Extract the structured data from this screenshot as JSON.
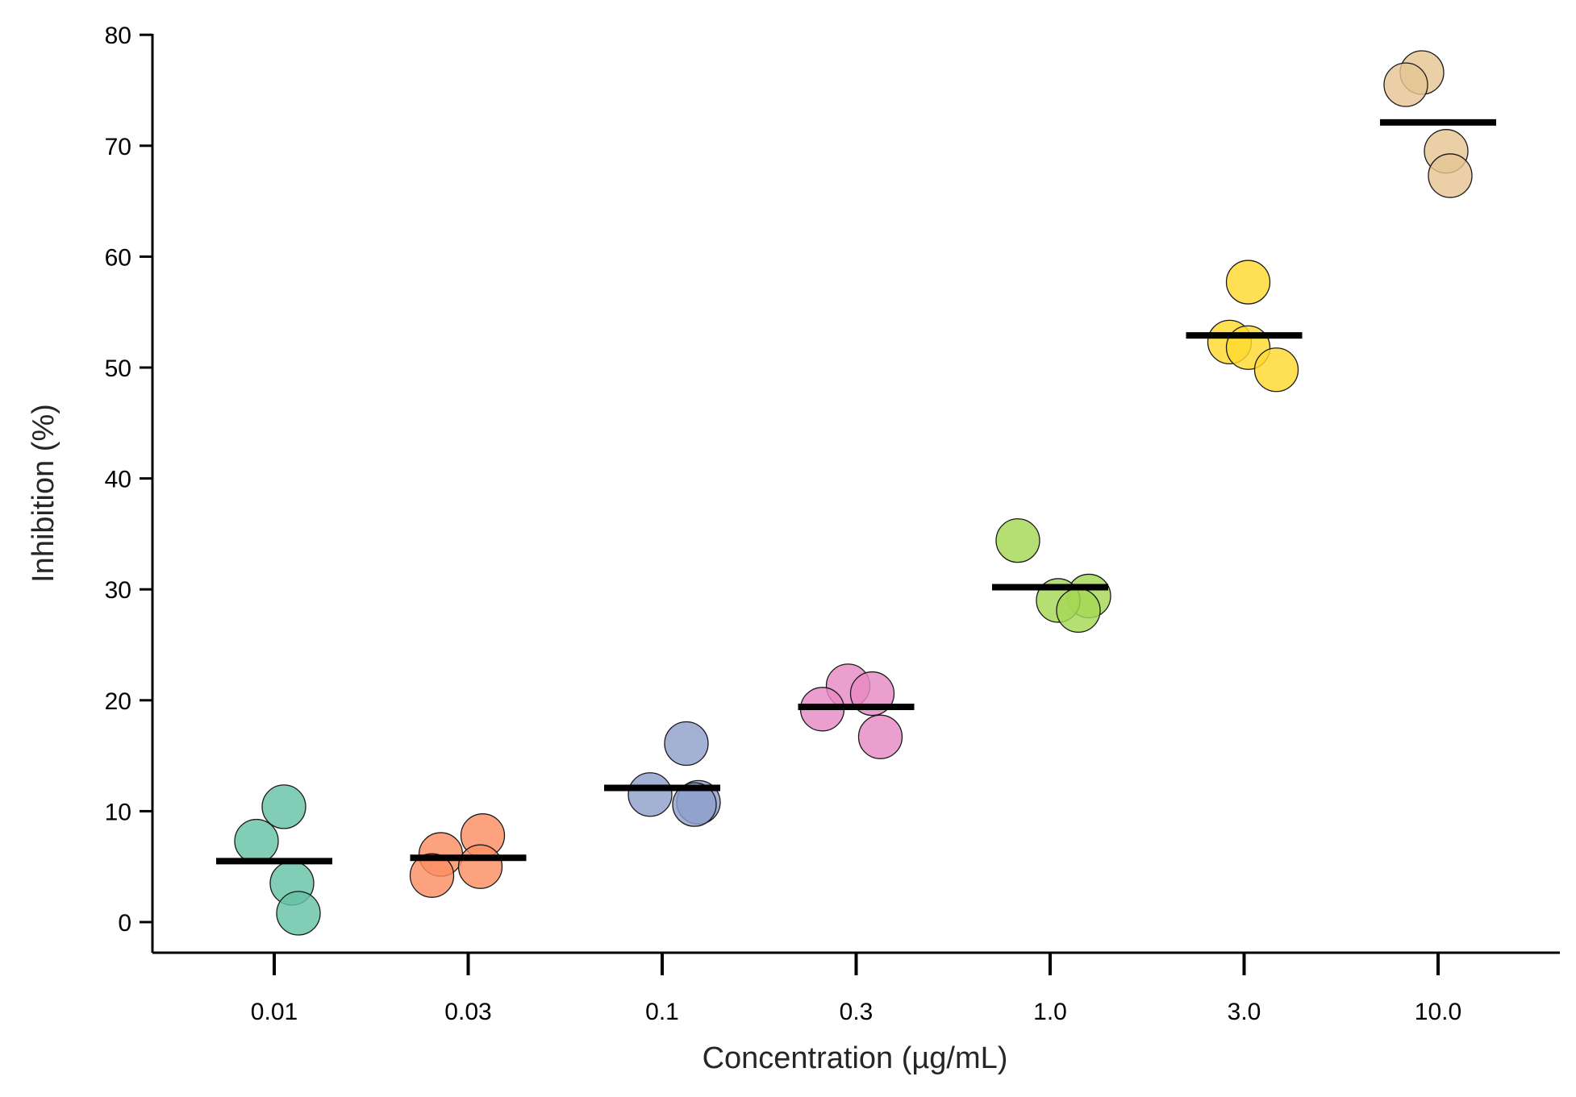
{
  "chart_data": {
    "type": "scatter",
    "title": "",
    "xlabel": "Concentration (µg/mL)",
    "ylabel": "Inhibition (%)",
    "ylim": [
      -3,
      80.5
    ],
    "yticks": [
      0,
      10,
      20,
      30,
      40,
      50,
      60,
      70,
      80
    ],
    "ytick_labels": [
      "0",
      "10",
      "20",
      "30",
      "40",
      "50",
      "60",
      "70",
      "80"
    ],
    "categories": [
      "0.01",
      "0.03",
      "0.1",
      "0.3",
      "1.0",
      "3.0",
      "10.0"
    ],
    "grid": false,
    "legend": "none",
    "series": [
      {
        "category": "0.01",
        "color": "#66c2a5",
        "values": [
          10.4,
          7.3,
          3.5,
          0.8
        ],
        "mean": 5.5
      },
      {
        "category": "0.03",
        "color": "#fc8d62",
        "values": [
          7.8,
          6.1,
          5.0,
          4.2
        ],
        "mean": 5.8
      },
      {
        "category": "0.1",
        "color": "#8da0cb",
        "values": [
          16.1,
          11.5,
          10.8,
          10.6
        ],
        "mean": 12.1
      },
      {
        "category": "0.3",
        "color": "#e78ac3",
        "values": [
          21.3,
          20.6,
          19.2,
          16.7
        ],
        "mean": 19.4
      },
      {
        "category": "1.0",
        "color": "#a6d854",
        "values": [
          34.4,
          29.4,
          29.0,
          28.1
        ],
        "mean": 30.2
      },
      {
        "category": "3.0",
        "color": "#ffd92f",
        "values": [
          57.7,
          52.3,
          51.8,
          49.8
        ],
        "mean": 52.9
      },
      {
        "category": "10.0",
        "color": "#e5c494",
        "values": [
          76.6,
          75.5,
          69.5,
          67.3
        ],
        "mean": 72.1
      }
    ]
  }
}
